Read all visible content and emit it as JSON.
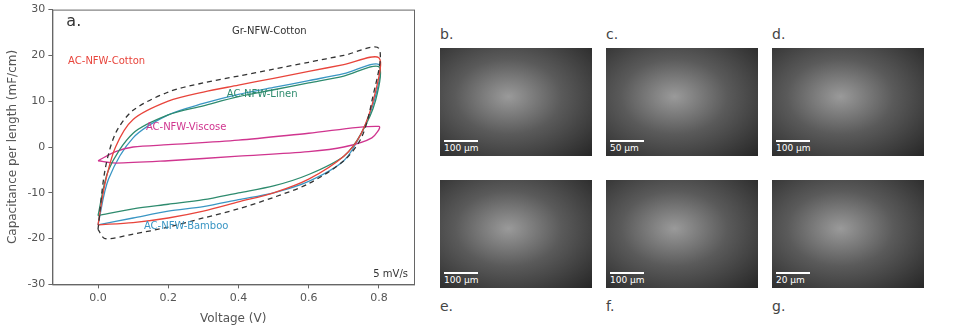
{
  "chart_data": {
    "type": "line",
    "panel_label": "a.",
    "x_label": "Voltage (V)",
    "y_label": "Capacitance per length (mF/cm)",
    "annotations": [
      "5 mV/s"
    ],
    "xlim": [
      -0.13,
      0.9
    ],
    "xticks": [
      {
        "value": 0,
        "label": "0.0"
      },
      0.2,
      0.4,
      0.6,
      0.8
    ],
    "ylim": [
      -30,
      30
    ],
    "yticks": [
      -30,
      -20,
      -10,
      0,
      10,
      20,
      30
    ],
    "grid": false,
    "series": [
      {
        "name": "Gr-NFW-Cotton",
        "color": "#333333",
        "line_style": "dashed",
        "x": [
          0,
          0.02,
          0.05,
          0.1,
          0.2,
          0.3,
          0.4,
          0.5,
          0.6,
          0.7,
          0.8,
          0.78,
          0.75,
          0.7,
          0.6,
          0.5,
          0.4,
          0.3,
          0.2,
          0.1,
          0.02,
          0
        ],
        "values": [
          -18,
          -5,
          3,
          8,
          12,
          14,
          15.5,
          17,
          18.5,
          20,
          21.5,
          10,
          2,
          -3,
          -8,
          -11,
          -13.5,
          -15.5,
          -17.5,
          -19,
          -20,
          -18
        ]
      },
      {
        "name": "AC-NFW-Cotton",
        "color": "#e8453c",
        "line_style": "solid",
        "x": [
          0,
          0.02,
          0.05,
          0.1,
          0.2,
          0.3,
          0.4,
          0.5,
          0.6,
          0.7,
          0.8,
          0.79,
          0.75,
          0.7,
          0.6,
          0.5,
          0.4,
          0.3,
          0.2,
          0.1,
          0
        ],
        "values": [
          -17,
          -8,
          0,
          6,
          10,
          12,
          13.5,
          15,
          16.5,
          18,
          19.5,
          12,
          3,
          -2,
          -7,
          -10,
          -12,
          -14,
          -15.5,
          -16.5,
          -17
        ]
      },
      {
        "name": "AC-NFW-Linen",
        "color": "#2e8b6e",
        "line_style": "solid",
        "x": [
          0,
          0.03,
          0.1,
          0.2,
          0.3,
          0.4,
          0.5,
          0.6,
          0.7,
          0.8,
          0.79,
          0.75,
          0.7,
          0.6,
          0.5,
          0.4,
          0.3,
          0.2,
          0.1,
          0
        ],
        "values": [
          -15,
          -5,
          3,
          7,
          9,
          11,
          12.5,
          14,
          15.5,
          17.5,
          10,
          3,
          -2,
          -6,
          -8.5,
          -10,
          -11.5,
          -12.5,
          -13.5,
          -15
        ]
      },
      {
        "name": "AC-NFW-Viscose",
        "color": "#d0358f",
        "line_style": "solid",
        "x": [
          0,
          0.05,
          0.1,
          0.2,
          0.4,
          0.6,
          0.8,
          0.78,
          0.7,
          0.6,
          0.4,
          0.2,
          0.05,
          0
        ],
        "values": [
          -3,
          -1,
          0,
          0.5,
          1.5,
          3,
          4.5,
          2,
          0,
          -1,
          -2,
          -3,
          -3.5,
          -3
        ]
      },
      {
        "name": "AC-NFW-Bamboo",
        "color": "#3a96c4",
        "line_style": "solid",
        "x": [
          0,
          0.03,
          0.1,
          0.2,
          0.3,
          0.4,
          0.5,
          0.6,
          0.7,
          0.8,
          0.79,
          0.75,
          0.7,
          0.6,
          0.5,
          0.4,
          0.3,
          0.2,
          0.1,
          0
        ],
        "values": [
          -17,
          -7,
          2,
          7,
          9.5,
          11.5,
          13,
          14.5,
          16,
          18,
          11,
          3,
          -3,
          -7.5,
          -10,
          -11.5,
          -13,
          -14,
          -15.5,
          -17
        ]
      }
    ]
  },
  "panels": [
    {
      "label": "b.",
      "scale_bar": "100 µm"
    },
    {
      "label": "c.",
      "scale_bar": "50 µm"
    },
    {
      "label": "d.",
      "scale_bar": "100 µm"
    },
    {
      "label": "e.",
      "scale_bar": "100 µm"
    },
    {
      "label": "f.",
      "scale_bar": "100 µm"
    },
    {
      "label": "g.",
      "scale_bar": "20 µm"
    }
  ]
}
